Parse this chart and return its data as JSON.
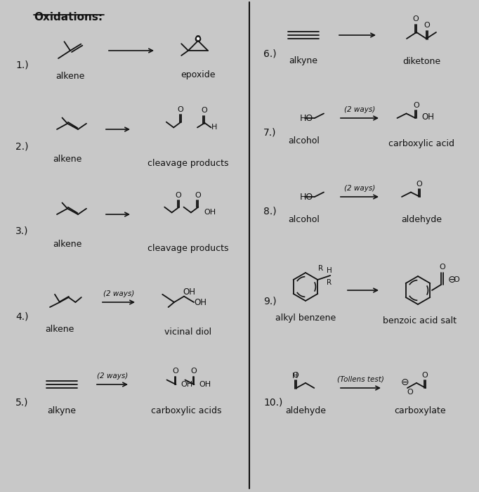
{
  "title": "Oxidations:",
  "bg_color": "#c8c8c8",
  "text_color": "#111111",
  "reactions_left": [
    {
      "num": "1.)",
      "reactant": "alkene",
      "product": "epoxide",
      "arrow_label": ""
    },
    {
      "num": "2.)",
      "reactant": "alkene",
      "product": "cleavage products",
      "arrow_label": ""
    },
    {
      "num": "3.)",
      "reactant": "alkene",
      "product": "cleavage products",
      "arrow_label": ""
    },
    {
      "num": "4.)",
      "reactant": "alkene",
      "product": "vicinal diol",
      "arrow_label": "(2 ways)"
    },
    {
      "num": "5.)",
      "reactant": "alkyne",
      "product": "carboxylic acids",
      "arrow_label": "(2 ways)"
    }
  ],
  "reactions_right": [
    {
      "num": "6.)",
      "reactant": "alkyne",
      "product": "diketone",
      "arrow_label": ""
    },
    {
      "num": "7.)",
      "reactant": "alcohol",
      "product": "carboxylic acid",
      "arrow_label": "(2 ways)"
    },
    {
      "num": "8.)",
      "reactant": "alcohol",
      "product": "aldehyde",
      "arrow_label": "(2 ways)"
    },
    {
      "num": "9.)",
      "reactant": "alkyl benzene",
      "product": "benzoic acid salt",
      "arrow_label": ""
    },
    {
      "num": "10.)",
      "reactant": "aldehyde",
      "product": "carboxylate",
      "arrow_label": "(Tollens test)"
    }
  ]
}
